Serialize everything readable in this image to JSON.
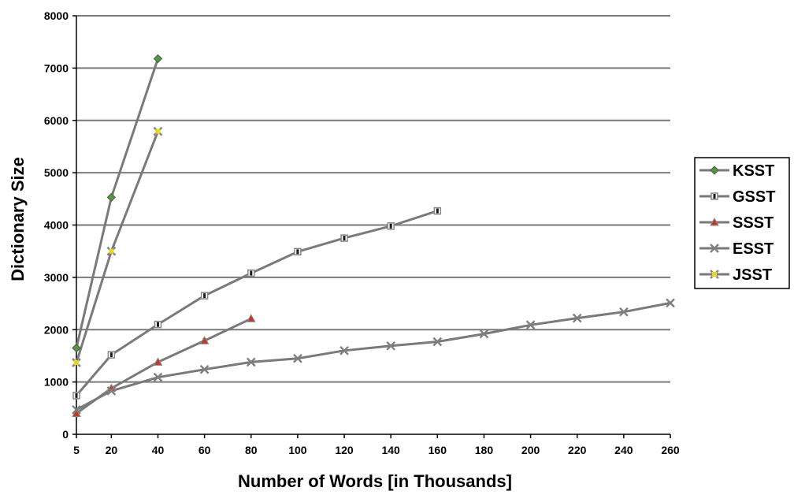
{
  "chart_data": {
    "type": "line",
    "title": "",
    "xlabel": "Number of Words [in Thousands]",
    "ylabel": "Dictionary Size",
    "x_ticks": [
      5,
      20,
      40,
      60,
      80,
      100,
      120,
      140,
      160,
      180,
      200,
      220,
      240,
      260
    ],
    "y_ticks": [
      0,
      1000,
      2000,
      3000,
      4000,
      5000,
      6000,
      7000,
      8000
    ],
    "ylim": [
      0,
      8000
    ],
    "grid": "horizontal",
    "legend_position": "right",
    "series": [
      {
        "name": "KSST",
        "marker": "diamond",
        "color": "#4f9a3c",
        "x": [
          5,
          20,
          40
        ],
        "y": [
          1650,
          4530,
          7180
        ]
      },
      {
        "name": "GSST",
        "marker": "square",
        "color": "#1a1a1a",
        "x": [
          5,
          20,
          40,
          60,
          80,
          100,
          120,
          140,
          160
        ],
        "y": [
          740,
          1520,
          2100,
          2650,
          3080,
          3490,
          3750,
          3980,
          4270
        ]
      },
      {
        "name": "SSST",
        "marker": "triangle",
        "color": "#c0392b",
        "x": [
          5,
          20,
          40,
          60,
          80
        ],
        "y": [
          400,
          880,
          1380,
          1790,
          2210
        ]
      },
      {
        "name": "ESST",
        "marker": "x",
        "color": "#7f7f7f",
        "x": [
          5,
          20,
          40,
          60,
          80,
          100,
          120,
          140,
          160,
          180,
          200,
          220,
          240,
          260
        ],
        "y": [
          470,
          830,
          1090,
          1240,
          1380,
          1450,
          1600,
          1690,
          1770,
          1920,
          2090,
          2220,
          2340,
          2510
        ]
      },
      {
        "name": "JSST",
        "marker": "star",
        "color": "#e6d81a",
        "x": [
          5,
          20,
          40
        ],
        "y": [
          1370,
          3500,
          5790
        ]
      }
    ]
  }
}
